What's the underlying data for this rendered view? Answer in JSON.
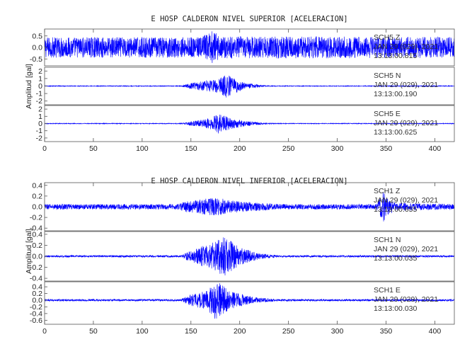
{
  "chart_data": [
    {
      "type": "line",
      "title": "E HOSP CALDERON NIVEL SUPERIOR [ACELERACION]",
      "ylabel": "Amplitud [gal]",
      "xlabel": "",
      "xlim": [
        0,
        420
      ],
      "x_ticks": [
        "0",
        "50",
        "100",
        "150",
        "200",
        "250",
        "300",
        "350",
        "400"
      ],
      "grid": false,
      "color": "#0000ff",
      "traces": [
        {
          "station": "SCH5",
          "component": "Z",
          "date": "JAN 29 (029), 2021",
          "time": "13:13:00.815",
          "ylim": [
            -0.8,
            0.8
          ],
          "y_ticks": [
            "0.5",
            "0.0",
            "-0.5"
          ],
          "noise_amplitude": 0.45,
          "envelope": [
            [
              0,
              1.0
            ],
            [
              160,
              1.0
            ],
            [
              172,
              1.6
            ],
            [
              180,
              1.1
            ],
            [
              420,
              1.0
            ]
          ]
        },
        {
          "station": "SCH5",
          "component": "N",
          "date": "JAN 29 (029), 2021",
          "time": "13:13:00.190",
          "ylim": [
            -2.5,
            2.5
          ],
          "y_ticks": [
            "2",
            "1",
            "0",
            "-1",
            "-2"
          ],
          "noise_amplitude": 0.05,
          "envelope": [
            [
              0,
              1
            ],
            [
              140,
              1
            ],
            [
              150,
              8
            ],
            [
              165,
              14
            ],
            [
              178,
              18
            ],
            [
              186,
              32
            ],
            [
              195,
              20
            ],
            [
              205,
              8
            ],
            [
              225,
              2
            ],
            [
              240,
              1
            ],
            [
              420,
              1
            ]
          ]
        },
        {
          "station": "SCH5",
          "component": "E",
          "date": "JAN 29 (029), 2021",
          "time": "13:13:00.625",
          "ylim": [
            -2.5,
            2.5
          ],
          "y_ticks": [
            "2",
            "1",
            "0",
            "-1",
            "-2"
          ],
          "noise_amplitude": 0.05,
          "envelope": [
            [
              0,
              1
            ],
            [
              140,
              1
            ],
            [
              150,
              6
            ],
            [
              165,
              12
            ],
            [
              178,
              28
            ],
            [
              190,
              16
            ],
            [
              205,
              8
            ],
            [
              225,
              2
            ],
            [
              240,
              1
            ],
            [
              420,
              1
            ]
          ]
        }
      ]
    },
    {
      "type": "line",
      "title": "E HOSP CALDERON NIVEL INFERIOR [ACELERACION]",
      "ylabel": "Amplitud [gal]",
      "xlabel": "",
      "xlim": [
        0,
        420
      ],
      "x_ticks": [
        "0",
        "50",
        "100",
        "150",
        "200",
        "250",
        "300",
        "350",
        "400"
      ],
      "grid": false,
      "color": "#0000ff",
      "traces": [
        {
          "station": "SCH1",
          "component": "Z",
          "date": "JAN 29 (029), 2021",
          "time": "13:13:00.655",
          "ylim": [
            -0.45,
            0.45
          ],
          "y_ticks": [
            "0.4",
            "0.2",
            "0.0",
            "-0.2",
            "-0.4"
          ],
          "noise_amplitude": 0.05,
          "envelope": [
            [
              0,
              1
            ],
            [
              135,
              1
            ],
            [
              145,
              2
            ],
            [
              175,
              3.5
            ],
            [
              200,
              2
            ],
            [
              240,
              1
            ],
            [
              340,
              1
            ],
            [
              348,
              6
            ],
            [
              352,
              3
            ],
            [
              360,
              1.5
            ],
            [
              420,
              1
            ]
          ]
        },
        {
          "station": "SCH1",
          "component": "N",
          "date": "JAN 29 (029), 2021",
          "time": "13:13:00.035",
          "ylim": [
            -0.45,
            0.45
          ],
          "y_ticks": [
            "0.4",
            "0.2",
            "0.0",
            "-0.2",
            "-0.4"
          ],
          "noise_amplitude": 0.018,
          "envelope": [
            [
              0,
              1
            ],
            [
              140,
              1
            ],
            [
              150,
              6
            ],
            [
              172,
              14
            ],
            [
              185,
              22
            ],
            [
              200,
              9
            ],
            [
              220,
              3
            ],
            [
              240,
              1
            ],
            [
              420,
              1
            ]
          ]
        },
        {
          "station": "SCH1",
          "component": "E",
          "date": "JAN 29 (029), 2021",
          "time": "13:13:00.030",
          "ylim": [
            -0.72,
            0.55
          ],
          "y_ticks": [
            "0.4",
            "0.2",
            "0.0",
            "-0.2",
            "-0.4",
            "-0.6"
          ],
          "noise_amplitude": 0.03,
          "envelope": [
            [
              0,
              1
            ],
            [
              140,
              1
            ],
            [
              150,
              6
            ],
            [
              165,
              9
            ],
            [
              176,
              20
            ],
            [
              190,
              9
            ],
            [
              215,
              3
            ],
            [
              240,
              1
            ],
            [
              420,
              1
            ]
          ]
        }
      ]
    }
  ]
}
